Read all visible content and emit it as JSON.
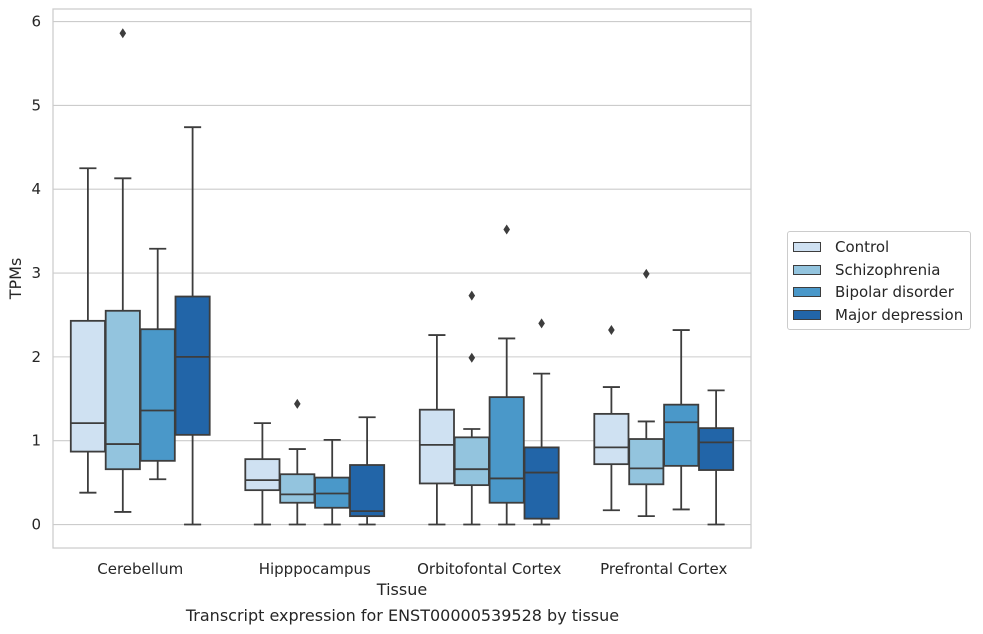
{
  "chart_data": {
    "type": "box",
    "title": "",
    "caption": "Transcript expression for ENST00000539528 by tissue",
    "xlabel": "Tissue",
    "ylabel": "TPMs",
    "ylim": [
      -0.28,
      6.15
    ],
    "yticks": [
      0,
      1,
      2,
      3,
      4,
      5,
      6
    ],
    "grid": true,
    "legend_position": "right",
    "categories": [
      "Cerebellum",
      "Hipppocampus",
      "Orbitofontal Cortex",
      "Prefrontal Cortex"
    ],
    "series": [
      {
        "name": "Control",
        "color": "#cfe1f2",
        "boxes": [
          {
            "min": 0.38,
            "q1": 0.87,
            "median": 1.21,
            "q3": 2.43,
            "max": 4.25,
            "outliers": []
          },
          {
            "min": 0.0,
            "q1": 0.41,
            "median": 0.53,
            "q3": 0.78,
            "max": 1.21,
            "outliers": []
          },
          {
            "min": 0.0,
            "q1": 0.49,
            "median": 0.95,
            "q3": 1.37,
            "max": 2.26,
            "outliers": []
          },
          {
            "min": 0.17,
            "q1": 0.72,
            "median": 0.92,
            "q3": 1.32,
            "max": 1.64,
            "outliers": [
              2.32
            ]
          }
        ]
      },
      {
        "name": "Schizophrenia",
        "color": "#93c4de",
        "boxes": [
          {
            "min": 0.15,
            "q1": 0.66,
            "median": 0.96,
            "q3": 2.55,
            "max": 4.13,
            "outliers": [
              5.86
            ]
          },
          {
            "min": 0.0,
            "q1": 0.26,
            "median": 0.36,
            "q3": 0.6,
            "max": 0.9,
            "outliers": [
              1.44
            ]
          },
          {
            "min": 0.0,
            "q1": 0.47,
            "median": 0.66,
            "q3": 1.04,
            "max": 1.14,
            "outliers": [
              1.99,
              2.73
            ]
          },
          {
            "min": 0.1,
            "q1": 0.48,
            "median": 0.67,
            "q3": 1.02,
            "max": 1.23,
            "outliers": [
              2.99
            ]
          }
        ]
      },
      {
        "name": "Bipolar disorder",
        "color": "#4a98c9",
        "boxes": [
          {
            "min": 0.54,
            "q1": 0.76,
            "median": 1.36,
            "q3": 2.33,
            "max": 3.29,
            "outliers": []
          },
          {
            "min": 0.0,
            "q1": 0.2,
            "median": 0.37,
            "q3": 0.56,
            "max": 1.01,
            "outliers": []
          },
          {
            "min": 0.0,
            "q1": 0.26,
            "median": 0.55,
            "q3": 1.52,
            "max": 2.22,
            "outliers": [
              3.52
            ]
          },
          {
            "min": 0.18,
            "q1": 0.7,
            "median": 1.22,
            "q3": 1.43,
            "max": 2.32,
            "outliers": []
          }
        ]
      },
      {
        "name": "Major depression",
        "color": "#2265a8",
        "boxes": [
          {
            "min": 0.0,
            "q1": 1.07,
            "median": 2.0,
            "q3": 2.72,
            "max": 4.74,
            "outliers": []
          },
          {
            "min": 0.0,
            "q1": 0.1,
            "median": 0.16,
            "q3": 0.71,
            "max": 1.28,
            "outliers": []
          },
          {
            "min": 0.0,
            "q1": 0.07,
            "median": 0.62,
            "q3": 0.92,
            "max": 1.8,
            "outliers": [
              2.4
            ]
          },
          {
            "min": 0.0,
            "q1": 0.65,
            "median": 0.98,
            "q3": 1.15,
            "max": 1.6,
            "outliers": []
          }
        ]
      }
    ]
  }
}
